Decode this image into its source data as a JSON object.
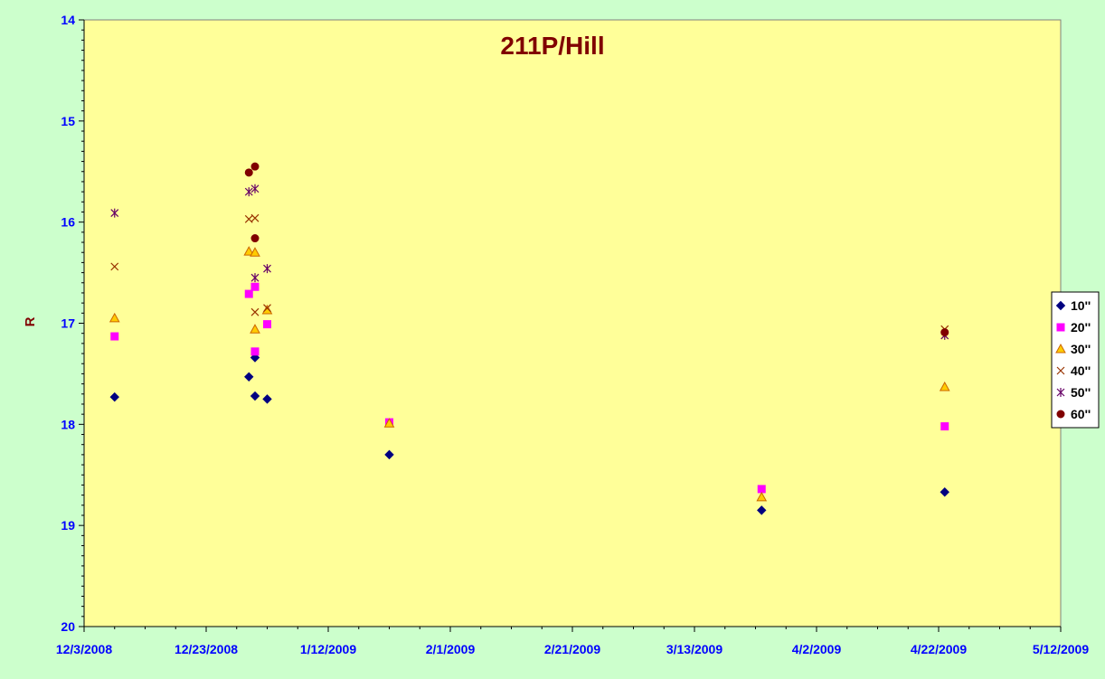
{
  "chart_data": {
    "type": "scatter",
    "title": "211P/Hill",
    "xlabel": "",
    "ylabel": "R",
    "x_axis": "date",
    "xlim": [
      "12/3/2008",
      "5/12/2009"
    ],
    "x_ticks": [
      "12/3/2008",
      "12/23/2008",
      "1/12/2009",
      "2/1/2009",
      "2/21/2009",
      "3/13/2009",
      "4/2/2009",
      "4/22/2009",
      "5/12/2009"
    ],
    "ylim": [
      14,
      20
    ],
    "y_inverted": true,
    "y_ticks": [
      "14",
      "15",
      "16",
      "17",
      "18",
      "19",
      "20"
    ],
    "grid": false,
    "legend_position": "right",
    "plot_background": "#ffff99",
    "series": [
      {
        "name": "10''",
        "marker": "diamond",
        "color": "#000080",
        "points": [
          {
            "x": "12/8/2008",
            "y": 17.73
          },
          {
            "x": "12/30/2008",
            "y": 17.53
          },
          {
            "x": "12/31/2008",
            "y": 17.34
          },
          {
            "x": "12/31/2008",
            "y": 17.72
          },
          {
            "x": "1/2/2009",
            "y": 17.75
          },
          {
            "x": "1/22/2009",
            "y": 18.3
          },
          {
            "x": "3/24/2009",
            "y": 18.85
          },
          {
            "x": "4/23/2009",
            "y": 18.67
          }
        ]
      },
      {
        "name": "20''",
        "marker": "square",
        "color": "#ff00ff",
        "points": [
          {
            "x": "12/8/2008",
            "y": 17.13
          },
          {
            "x": "12/30/2008",
            "y": 16.71
          },
          {
            "x": "12/31/2008",
            "y": 16.64
          },
          {
            "x": "12/31/2008",
            "y": 17.28
          },
          {
            "x": "1/2/2009",
            "y": 17.01
          },
          {
            "x": "1/22/2009",
            "y": 17.98
          },
          {
            "x": "3/24/2009",
            "y": 18.64
          },
          {
            "x": "4/23/2009",
            "y": 18.02
          }
        ]
      },
      {
        "name": "30''",
        "marker": "triangle",
        "color": "#ffcc00",
        "stroke": "#cc6600",
        "points": [
          {
            "x": "12/8/2008",
            "y": 16.95
          },
          {
            "x": "12/30/2008",
            "y": 16.29
          },
          {
            "x": "12/31/2008",
            "y": 16.3
          },
          {
            "x": "12/31/2008",
            "y": 17.06
          },
          {
            "x": "1/2/2009",
            "y": 16.87
          },
          {
            "x": "1/22/2009",
            "y": 17.99
          },
          {
            "x": "3/24/2009",
            "y": 18.72
          },
          {
            "x": "4/23/2009",
            "y": 17.63
          }
        ]
      },
      {
        "name": "40''",
        "marker": "x",
        "color": "#993300",
        "points": [
          {
            "x": "12/8/2008",
            "y": 16.44
          },
          {
            "x": "12/30/2008",
            "y": 15.97
          },
          {
            "x": "12/31/2008",
            "y": 15.96
          },
          {
            "x": "12/31/2008",
            "y": 16.89
          },
          {
            "x": "1/2/2009",
            "y": 16.85
          },
          {
            "x": "4/23/2009",
            "y": 17.06
          }
        ]
      },
      {
        "name": "50''",
        "marker": "star",
        "color": "#660066",
        "points": [
          {
            "x": "12/8/2008",
            "y": 15.91
          },
          {
            "x": "12/30/2008",
            "y": 15.7
          },
          {
            "x": "12/31/2008",
            "y": 15.67
          },
          {
            "x": "12/31/2008",
            "y": 16.55
          },
          {
            "x": "1/2/2009",
            "y": 16.46
          },
          {
            "x": "4/23/2009",
            "y": 17.12
          }
        ]
      },
      {
        "name": "60''",
        "marker": "circle",
        "color": "#800000",
        "points": [
          {
            "x": "12/30/2008",
            "y": 15.51
          },
          {
            "x": "12/31/2008",
            "y": 15.45
          },
          {
            "x": "12/31/2008",
            "y": 16.16
          },
          {
            "x": "4/23/2009",
            "y": 17.09
          }
        ]
      }
    ]
  }
}
